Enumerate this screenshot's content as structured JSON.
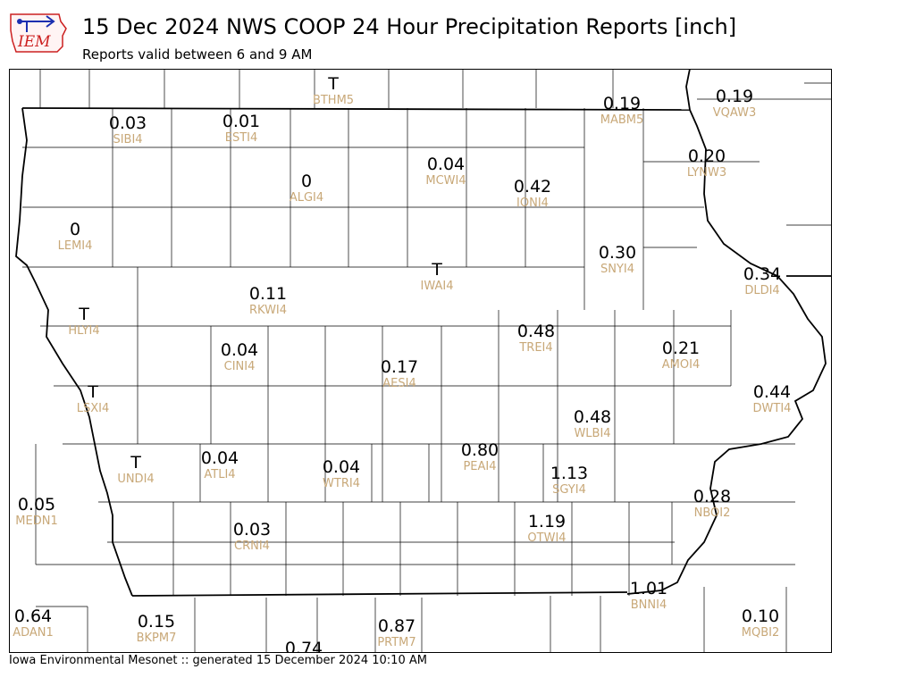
{
  "header": {
    "logo_text": "IEM",
    "title": "15 Dec 2024 NWS COOP 24 Hour Precipitation Reports [inch]",
    "subtitle": "Reports valid between 6 and 9 AM"
  },
  "footer": {
    "text": "Iowa Environmental Mesonet :: generated 15 December 2024 10:10 AM"
  },
  "colors": {
    "value_text": "#000000",
    "station_id_text": "#c8a878",
    "county_lines": "#000000",
    "logo_red": "#cc2020",
    "logo_blue": "#1a2fb0"
  },
  "stations": [
    {
      "id": "BTHM5",
      "value": "T"
    },
    {
      "id": "MABM5",
      "value": "0.19"
    },
    {
      "id": "VQAW3",
      "value": "0.19"
    },
    {
      "id": "SIBI4",
      "value": "0.03"
    },
    {
      "id": "ESTI4",
      "value": "0.01"
    },
    {
      "id": "MCWI4",
      "value": "0.04"
    },
    {
      "id": "LYNW3",
      "value": "0.20"
    },
    {
      "id": "ALGI4",
      "value": "0"
    },
    {
      "id": "IONI4",
      "value": "0.42"
    },
    {
      "id": "LEMI4",
      "value": "0"
    },
    {
      "id": "SNYI4",
      "value": "0.30"
    },
    {
      "id": "IWAI4",
      "value": "T"
    },
    {
      "id": "DLDI4",
      "value": "0.34"
    },
    {
      "id": "RKWI4",
      "value": "0.11"
    },
    {
      "id": "HLYI4",
      "value": "T"
    },
    {
      "id": "TREI4",
      "value": "0.48"
    },
    {
      "id": "AMOI4",
      "value": "0.21"
    },
    {
      "id": "CINI4",
      "value": "0.04"
    },
    {
      "id": "AESI4",
      "value": "0.17"
    },
    {
      "id": "DWTI4",
      "value": "0.44"
    },
    {
      "id": "LSXI4",
      "value": "T"
    },
    {
      "id": "WLBI4",
      "value": "0.48"
    },
    {
      "id": "PEAI4",
      "value": "0.80"
    },
    {
      "id": "UNDI4",
      "value": "T"
    },
    {
      "id": "ATLI4",
      "value": "0.04"
    },
    {
      "id": "WTRI4",
      "value": "0.04"
    },
    {
      "id": "SGYI4",
      "value": "1.13"
    },
    {
      "id": "NBOI2",
      "value": "0.28"
    },
    {
      "id": "MEDN1",
      "value": "0.05"
    },
    {
      "id": "OTWI4",
      "value": "1.19"
    },
    {
      "id": "CRNI4",
      "value": "0.03"
    },
    {
      "id": "BNNI4",
      "value": "1.01"
    },
    {
      "id": "ADAN1",
      "value": "0.64"
    },
    {
      "id": "BKPM7",
      "value": "0.15"
    },
    {
      "id": "PRTM7",
      "value": "0.87"
    },
    {
      "id": "MQBI2",
      "value": "0.10"
    },
    {
      "id": "",
      "value": "0.74"
    }
  ]
}
